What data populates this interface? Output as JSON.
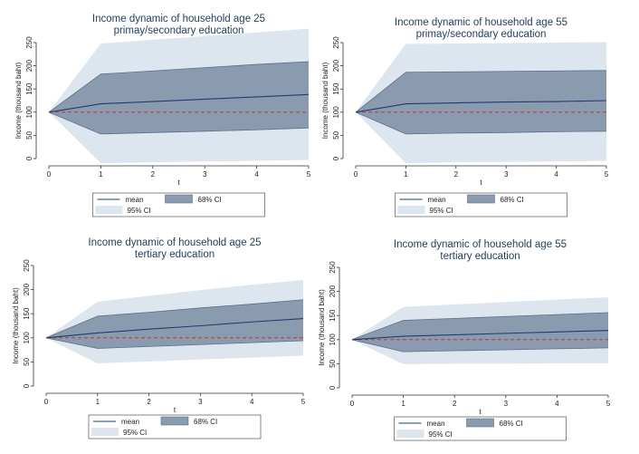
{
  "chart_data": [
    {
      "type": "line",
      "title": "Income dynamic of household age 25",
      "subtitle": "primay/secondary education",
      "xlabel": "t",
      "ylabel": "Income (thousand baht)",
      "x": [
        0,
        1,
        2,
        3,
        4,
        5
      ],
      "xlim": [
        0,
        5
      ],
      "ylim": [
        0,
        250
      ],
      "yticks": [
        0,
        50,
        100,
        150,
        200,
        250
      ],
      "baseline": 100,
      "series": [
        {
          "name": "mean",
          "values": [
            100,
            118,
            123,
            128,
            133,
            138
          ]
        },
        {
          "name": "68% CI upper",
          "values": [
            100,
            182,
            189,
            196,
            203,
            209
          ]
        },
        {
          "name": "68% CI lower",
          "values": [
            100,
            53,
            56,
            59,
            62,
            66
          ]
        },
        {
          "name": "95% CI upper",
          "values": [
            100,
            248,
            256,
            264,
            272,
            280
          ]
        },
        {
          "name": "95% CI lower",
          "values": [
            100,
            -10,
            -8,
            -6,
            -5,
            -3
          ]
        }
      ],
      "legend": [
        "mean",
        "68% CI",
        "95% CI"
      ],
      "colors": {
        "mean": "#1f3d6b",
        "ci68": "#8a9bb0",
        "ci95": "#dde6ee",
        "baseline": "#c0392b"
      }
    },
    {
      "type": "line",
      "title": "Income dynamic of household age 55",
      "subtitle": "primay/secondary education",
      "xlabel": "t",
      "ylabel": "Income (thousand baht)",
      "x": [
        0,
        1,
        2,
        3,
        4,
        5
      ],
      "xlim": [
        0,
        5
      ],
      "ylim": [
        0,
        250
      ],
      "yticks": [
        0,
        50,
        100,
        150,
        200,
        250
      ],
      "baseline": 100,
      "series": [
        {
          "name": "mean",
          "values": [
            100,
            118,
            120,
            122,
            123,
            125
          ]
        },
        {
          "name": "68% CI upper",
          "values": [
            100,
            186,
            187,
            188,
            189,
            190
          ]
        },
        {
          "name": "68% CI lower",
          "values": [
            100,
            53,
            55,
            56,
            58,
            59
          ]
        },
        {
          "name": "95% CI upper",
          "values": [
            100,
            247,
            248,
            249,
            250,
            251
          ]
        },
        {
          "name": "95% CI lower",
          "values": [
            100,
            -10,
            -8,
            -7,
            -6,
            -5
          ]
        }
      ],
      "legend": [
        "mean",
        "68% CI",
        "95% CI"
      ],
      "colors": {
        "mean": "#1f3d6b",
        "ci68": "#8a9bb0",
        "ci95": "#dde6ee",
        "baseline": "#c0392b"
      }
    },
    {
      "type": "line",
      "title": "Income dynamic of household age 25",
      "subtitle": "tertiary education",
      "xlabel": "t",
      "ylabel": "Income (thousand baht)",
      "x": [
        0,
        1,
        2,
        3,
        4,
        5
      ],
      "xlim": [
        0,
        5
      ],
      "ylim": [
        0,
        250
      ],
      "yticks": [
        0,
        50,
        100,
        150,
        200,
        250
      ],
      "baseline": 100,
      "series": [
        {
          "name": "mean",
          "values": [
            100,
            110,
            118,
            125,
            133,
            140
          ]
        },
        {
          "name": "68% CI upper",
          "values": [
            100,
            145,
            153,
            162,
            170,
            179
          ]
        },
        {
          "name": "68% CI lower",
          "values": [
            100,
            78,
            82,
            86,
            90,
            94
          ]
        },
        {
          "name": "95% CI upper",
          "values": [
            100,
            175,
            187,
            199,
            210,
            220
          ]
        },
        {
          "name": "95% CI lower",
          "values": [
            100,
            47,
            51,
            55,
            59,
            63
          ]
        }
      ],
      "legend": [
        "mean",
        "68% CI",
        "95% CI"
      ],
      "colors": {
        "mean": "#1f3d6b",
        "ci68": "#8a9bb0",
        "ci95": "#dde6ee",
        "baseline": "#c0392b"
      }
    },
    {
      "type": "line",
      "title": "Income dynamic of household age 55",
      "subtitle": "tertiary education",
      "xlabel": "t",
      "ylabel": "Income (thousand baht)",
      "x": [
        0,
        1,
        2,
        3,
        4,
        5
      ],
      "xlim": [
        0,
        5
      ],
      "ylim": [
        0,
        250
      ],
      "yticks": [
        0,
        50,
        100,
        150,
        200,
        250
      ],
      "baseline": 100,
      "series": [
        {
          "name": "mean",
          "values": [
            100,
            107,
            110,
            113,
            116,
            119
          ]
        },
        {
          "name": "68% CI upper",
          "values": [
            100,
            140,
            144,
            148,
            152,
            156
          ]
        },
        {
          "name": "68% CI lower",
          "values": [
            100,
            75,
            77,
            79,
            81,
            83
          ]
        },
        {
          "name": "95% CI upper",
          "values": [
            100,
            168,
            173,
            178,
            183,
            188
          ]
        },
        {
          "name": "95% CI lower",
          "values": [
            100,
            49,
            50,
            50,
            51,
            51
          ]
        }
      ],
      "legend": [
        "mean",
        "68% CI",
        "95% CI"
      ],
      "colors": {
        "mean": "#1f3d6b",
        "ci68": "#8a9bb0",
        "ci95": "#dde6ee",
        "baseline": "#c0392b"
      }
    }
  ]
}
